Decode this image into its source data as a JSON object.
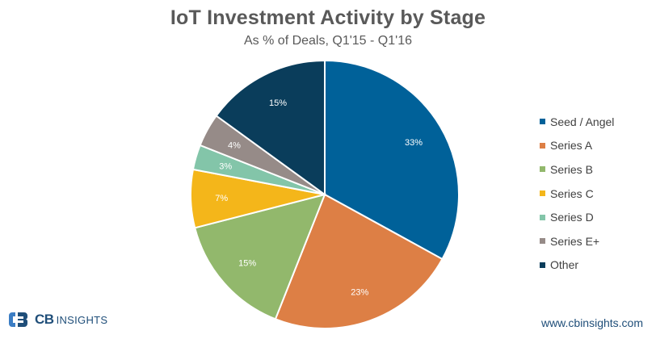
{
  "chart_data": {
    "type": "pie",
    "title": "IoT Investment Activity by Stage",
    "subtitle": "As % of Deals, Q1'15 - Q1'16",
    "categories": [
      "Seed / Angel",
      "Series A",
      "Series B",
      "Series C",
      "Series D",
      "Series E+",
      "Other"
    ],
    "values": [
      33,
      23,
      15,
      7,
      3,
      4,
      15
    ],
    "value_labels": [
      "33%",
      "23%",
      "15%",
      "7%",
      "3%",
      "4%",
      "15%"
    ],
    "colors": [
      "#006199",
      "#dd7f45",
      "#92b86c",
      "#f4b61a",
      "#83c5a9",
      "#968b88",
      "#0a3d5b"
    ],
    "legend_position": "right"
  },
  "branding": {
    "logo_cb": "CB",
    "logo_insights": "INSIGHTS",
    "url": "www.cbinsights.com"
  }
}
